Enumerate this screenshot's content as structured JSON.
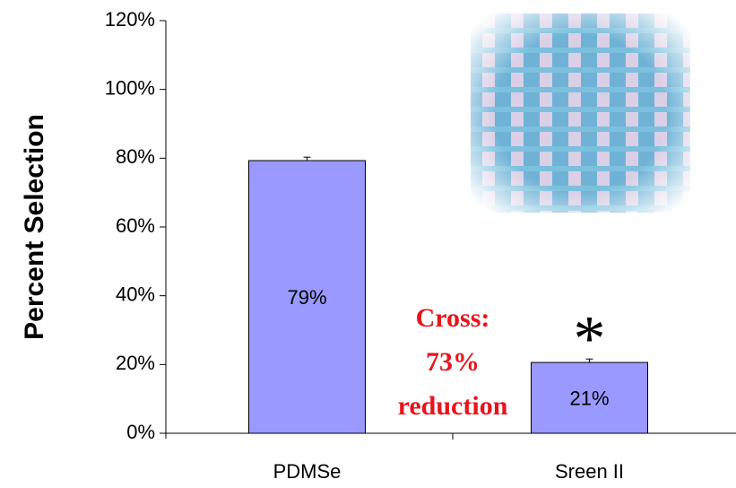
{
  "chart_data": {
    "type": "bar",
    "y_label": "Percent Selection",
    "categories": [
      "PDMSe",
      "Sreen II"
    ],
    "values": [
      79.3,
      20.6
    ],
    "value_labels": [
      "79%",
      "21%"
    ],
    "errors": [
      1,
      1
    ],
    "color": "#9999ff",
    "ylim": [
      0,
      120
    ],
    "yticks": [
      {
        "value": 0,
        "label": "0%"
      },
      {
        "value": 20,
        "label": "20%"
      },
      {
        "value": 40,
        "label": "40%"
      },
      {
        "value": 60,
        "label": "60%"
      },
      {
        "value": 80,
        "label": "80%"
      },
      {
        "value": 100,
        "label": "100%"
      },
      {
        "value": 120,
        "label": "120%"
      }
    ],
    "annotation": [
      "Cross:",
      "73%",
      "reduction"
    ],
    "significance_marker": "*"
  }
}
